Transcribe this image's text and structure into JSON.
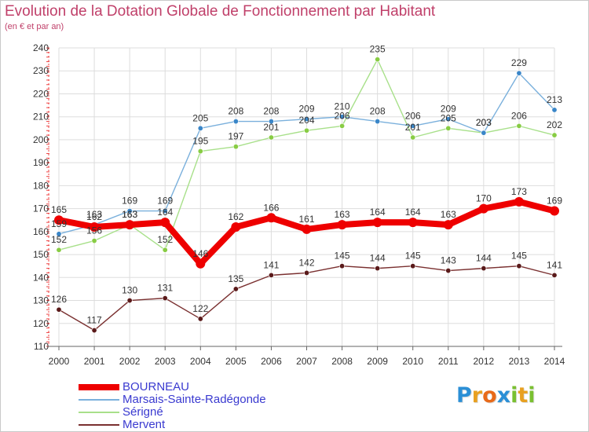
{
  "title": "Evolution de la Dotation Globale de Fonctionnement par Habitant",
  "subtitle": "(en € et par an)",
  "logo": {
    "letters": [
      "P",
      "r",
      "o",
      "x",
      "i",
      "t",
      "i"
    ],
    "colors": [
      "#2b8fd6",
      "#e8a020",
      "#e86a1a",
      "#2b8fd6",
      "#7ac030",
      "#e8a020",
      "#7ac030"
    ]
  },
  "chart_data": {
    "type": "line",
    "x": [
      2000,
      2001,
      2002,
      2003,
      2004,
      2005,
      2006,
      2007,
      2008,
      2009,
      2010,
      2011,
      2012,
      2013,
      2014
    ],
    "ylim": [
      110,
      240
    ],
    "yticks": [
      110,
      120,
      130,
      140,
      150,
      160,
      170,
      180,
      190,
      200,
      210,
      220,
      230,
      240
    ],
    "grid": true,
    "legend": "bottom-left",
    "series": [
      {
        "name": "Mervent",
        "color": "#7a3030",
        "marker": "#5a1a1a",
        "values": [
          126,
          117,
          130,
          131,
          122,
          135,
          141,
          142,
          145,
          144,
          145,
          143,
          144,
          145,
          141
        ]
      },
      {
        "name": "Sérigné",
        "color": "#a8e08a",
        "marker": "#88cc44",
        "values": [
          152,
          156,
          163,
          152,
          195,
          197,
          201,
          204,
          206,
          235,
          201,
          205,
          203,
          206,
          202
        ]
      },
      {
        "name": "Marsais-Sainte-Radégonde",
        "color": "#7ab0dc",
        "marker": "#3a86c8",
        "values": [
          159,
          163,
          169,
          169,
          205,
          208,
          208,
          209,
          210,
          208,
          206,
          209,
          203,
          229,
          213
        ]
      },
      {
        "name": "BOURNEAU",
        "color": "#ee0000",
        "marker": "#ee0000",
        "values": [
          165,
          162,
          163,
          164,
          146,
          162,
          166,
          161,
          163,
          164,
          164,
          163,
          170,
          173,
          169
        ]
      }
    ],
    "legend_order": [
      "BOURNEAU",
      "Marsais-Sainte-Radégonde",
      "Sérigné",
      "Mervent"
    ]
  }
}
